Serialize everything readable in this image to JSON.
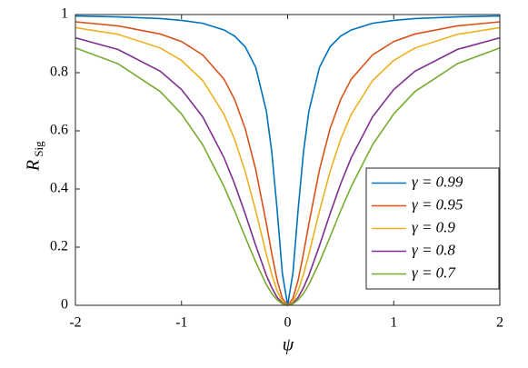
{
  "chart_data": {
    "type": "line",
    "xlabel": "ψ",
    "ylabel": "R",
    "ylabel_subscript": "Sig",
    "x": [
      -2,
      -1.6,
      -1.2,
      -1,
      -0.8,
      -0.6,
      -0.5,
      -0.4,
      -0.3,
      -0.2,
      -0.15,
      -0.1,
      -0.05,
      0,
      0.05,
      0.1,
      0.15,
      0.2,
      0.3,
      0.4,
      0.5,
      0.6,
      0.8,
      1,
      1.2,
      1.6,
      2
    ],
    "series": [
      {
        "name": "γ = 0.99",
        "color": "#0072bd",
        "values": [
          0.995,
          0.992,
          0.986,
          0.98,
          0.97,
          0.947,
          0.926,
          0.889,
          0.818,
          0.667,
          0.529,
          0.333,
          0.111,
          0,
          0.111,
          0.333,
          0.529,
          0.667,
          0.818,
          0.889,
          0.926,
          0.947,
          0.97,
          0.98,
          0.986,
          0.992,
          0.995
        ]
      },
      {
        "name": "γ = 0.95",
        "color": "#d95319",
        "values": [
          0.975,
          0.961,
          0.933,
          0.907,
          0.861,
          0.778,
          0.708,
          0.608,
          0.466,
          0.28,
          0.179,
          0.088,
          0.024,
          0,
          0.024,
          0.088,
          0.179,
          0.28,
          0.466,
          0.608,
          0.708,
          0.778,
          0.861,
          0.907,
          0.933,
          0.961,
          0.975
        ]
      },
      {
        "name": "γ = 0.9",
        "color": "#edb120",
        "values": [
          0.955,
          0.932,
          0.885,
          0.842,
          0.773,
          0.657,
          0.571,
          0.46,
          0.324,
          0.175,
          0.107,
          0.051,
          0.013,
          0,
          0.013,
          0.051,
          0.107,
          0.175,
          0.324,
          0.46,
          0.571,
          0.657,
          0.773,
          0.842,
          0.885,
          0.932,
          0.955
        ]
      },
      {
        "name": "γ = 0.8",
        "color": "#7e2f8e",
        "values": [
          0.92,
          0.88,
          0.805,
          0.742,
          0.648,
          0.508,
          0.418,
          0.315,
          0.205,
          0.103,
          0.061,
          0.028,
          0.007,
          0,
          0.007,
          0.028,
          0.061,
          0.103,
          0.205,
          0.315,
          0.418,
          0.508,
          0.648,
          0.742,
          0.805,
          0.88,
          0.92
        ]
      },
      {
        "name": "γ = 0.7",
        "color": "#77ac30",
        "values": [
          0.885,
          0.831,
          0.735,
          0.658,
          0.552,
          0.409,
          0.325,
          0.235,
          0.148,
          0.071,
          0.041,
          0.019,
          0.005,
          0,
          0.005,
          0.019,
          0.041,
          0.071,
          0.148,
          0.235,
          0.325,
          0.409,
          0.552,
          0.658,
          0.735,
          0.831,
          0.885
        ]
      }
    ],
    "xlim": [
      -2,
      2
    ],
    "xticks": [
      -2,
      -1,
      0,
      1,
      2
    ],
    "ylim": [
      0,
      1
    ],
    "yticks": [
      0,
      0.2,
      0.4,
      0.6,
      0.8,
      1
    ],
    "grid": false,
    "legend": "lower right"
  }
}
